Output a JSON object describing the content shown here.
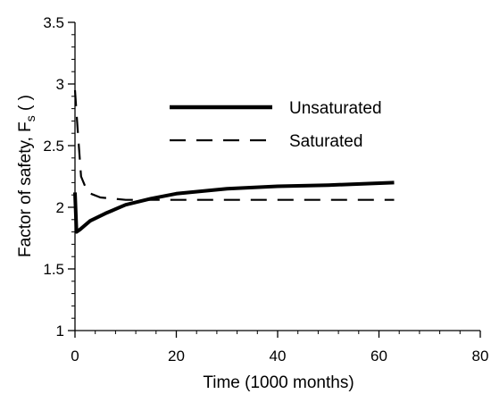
{
  "chart_data": {
    "type": "line",
    "xlabel": "Time (1000 months)",
    "ylabel_main": "Factor of safety, F",
    "ylabel_sub": "s",
    "ylabel_suffix": " ( )",
    "xlim": [
      0,
      80
    ],
    "ylim": [
      1,
      3.5
    ],
    "xticks": [
      0,
      20,
      40,
      60,
      80
    ],
    "yticks": [
      1,
      1.5,
      2,
      2.5,
      3,
      3.5
    ],
    "xtick_labels": [
      "0",
      "20",
      "40",
      "60",
      "80"
    ],
    "ytick_labels": [
      "1",
      "1.5",
      "2",
      "2.5",
      "3",
      "3.5"
    ],
    "grid": false,
    "legend_position": "upper-center",
    "series": [
      {
        "name": "Unsaturated",
        "style": "solid",
        "color": "#000000",
        "x": [
          0,
          0.3,
          1,
          3,
          6,
          10,
          15,
          20,
          30,
          40,
          50,
          63
        ],
        "y": [
          2.12,
          1.8,
          1.82,
          1.89,
          1.95,
          2.02,
          2.07,
          2.11,
          2.15,
          2.17,
          2.18,
          2.2
        ]
      },
      {
        "name": "Saturated",
        "style": "dashed",
        "color": "#000000",
        "x": [
          0,
          0.5,
          1.2,
          2.5,
          5,
          10,
          20,
          40,
          63
        ],
        "y": [
          2.95,
          2.65,
          2.25,
          2.12,
          2.08,
          2.06,
          2.06,
          2.06,
          2.06
        ]
      }
    ]
  }
}
